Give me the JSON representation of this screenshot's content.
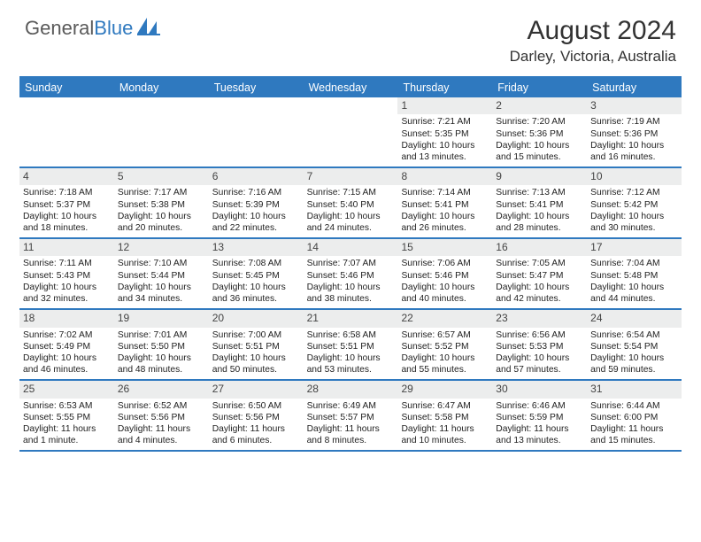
{
  "logo": {
    "part1": "General",
    "part2": "Blue"
  },
  "title": "August 2024",
  "location": "Darley, Victoria, Australia",
  "colors": {
    "brand_blue": "#2f79bf",
    "day_header_bg": "#eceded",
    "text": "#222222",
    "background": "#ffffff"
  },
  "typography": {
    "title_fontsize": 30,
    "location_fontsize": 17,
    "header_row_fontsize": 12.5,
    "cell_fontsize": 10.3
  },
  "day_headers": [
    "Sunday",
    "Monday",
    "Tuesday",
    "Wednesday",
    "Thursday",
    "Friday",
    "Saturday"
  ],
  "weeks": [
    [
      {
        "n": "",
        "sr": "",
        "ss": "",
        "dl": ""
      },
      {
        "n": "",
        "sr": "",
        "ss": "",
        "dl": ""
      },
      {
        "n": "",
        "sr": "",
        "ss": "",
        "dl": ""
      },
      {
        "n": "",
        "sr": "",
        "ss": "",
        "dl": ""
      },
      {
        "n": "1",
        "sr": "Sunrise: 7:21 AM",
        "ss": "Sunset: 5:35 PM",
        "dl": "Daylight: 10 hours and 13 minutes."
      },
      {
        "n": "2",
        "sr": "Sunrise: 7:20 AM",
        "ss": "Sunset: 5:36 PM",
        "dl": "Daylight: 10 hours and 15 minutes."
      },
      {
        "n": "3",
        "sr": "Sunrise: 7:19 AM",
        "ss": "Sunset: 5:36 PM",
        "dl": "Daylight: 10 hours and 16 minutes."
      }
    ],
    [
      {
        "n": "4",
        "sr": "Sunrise: 7:18 AM",
        "ss": "Sunset: 5:37 PM",
        "dl": "Daylight: 10 hours and 18 minutes."
      },
      {
        "n": "5",
        "sr": "Sunrise: 7:17 AM",
        "ss": "Sunset: 5:38 PM",
        "dl": "Daylight: 10 hours and 20 minutes."
      },
      {
        "n": "6",
        "sr": "Sunrise: 7:16 AM",
        "ss": "Sunset: 5:39 PM",
        "dl": "Daylight: 10 hours and 22 minutes."
      },
      {
        "n": "7",
        "sr": "Sunrise: 7:15 AM",
        "ss": "Sunset: 5:40 PM",
        "dl": "Daylight: 10 hours and 24 minutes."
      },
      {
        "n": "8",
        "sr": "Sunrise: 7:14 AM",
        "ss": "Sunset: 5:41 PM",
        "dl": "Daylight: 10 hours and 26 minutes."
      },
      {
        "n": "9",
        "sr": "Sunrise: 7:13 AM",
        "ss": "Sunset: 5:41 PM",
        "dl": "Daylight: 10 hours and 28 minutes."
      },
      {
        "n": "10",
        "sr": "Sunrise: 7:12 AM",
        "ss": "Sunset: 5:42 PM",
        "dl": "Daylight: 10 hours and 30 minutes."
      }
    ],
    [
      {
        "n": "11",
        "sr": "Sunrise: 7:11 AM",
        "ss": "Sunset: 5:43 PM",
        "dl": "Daylight: 10 hours and 32 minutes."
      },
      {
        "n": "12",
        "sr": "Sunrise: 7:10 AM",
        "ss": "Sunset: 5:44 PM",
        "dl": "Daylight: 10 hours and 34 minutes."
      },
      {
        "n": "13",
        "sr": "Sunrise: 7:08 AM",
        "ss": "Sunset: 5:45 PM",
        "dl": "Daylight: 10 hours and 36 minutes."
      },
      {
        "n": "14",
        "sr": "Sunrise: 7:07 AM",
        "ss": "Sunset: 5:46 PM",
        "dl": "Daylight: 10 hours and 38 minutes."
      },
      {
        "n": "15",
        "sr": "Sunrise: 7:06 AM",
        "ss": "Sunset: 5:46 PM",
        "dl": "Daylight: 10 hours and 40 minutes."
      },
      {
        "n": "16",
        "sr": "Sunrise: 7:05 AM",
        "ss": "Sunset: 5:47 PM",
        "dl": "Daylight: 10 hours and 42 minutes."
      },
      {
        "n": "17",
        "sr": "Sunrise: 7:04 AM",
        "ss": "Sunset: 5:48 PM",
        "dl": "Daylight: 10 hours and 44 minutes."
      }
    ],
    [
      {
        "n": "18",
        "sr": "Sunrise: 7:02 AM",
        "ss": "Sunset: 5:49 PM",
        "dl": "Daylight: 10 hours and 46 minutes."
      },
      {
        "n": "19",
        "sr": "Sunrise: 7:01 AM",
        "ss": "Sunset: 5:50 PM",
        "dl": "Daylight: 10 hours and 48 minutes."
      },
      {
        "n": "20",
        "sr": "Sunrise: 7:00 AM",
        "ss": "Sunset: 5:51 PM",
        "dl": "Daylight: 10 hours and 50 minutes."
      },
      {
        "n": "21",
        "sr": "Sunrise: 6:58 AM",
        "ss": "Sunset: 5:51 PM",
        "dl": "Daylight: 10 hours and 53 minutes."
      },
      {
        "n": "22",
        "sr": "Sunrise: 6:57 AM",
        "ss": "Sunset: 5:52 PM",
        "dl": "Daylight: 10 hours and 55 minutes."
      },
      {
        "n": "23",
        "sr": "Sunrise: 6:56 AM",
        "ss": "Sunset: 5:53 PM",
        "dl": "Daylight: 10 hours and 57 minutes."
      },
      {
        "n": "24",
        "sr": "Sunrise: 6:54 AM",
        "ss": "Sunset: 5:54 PM",
        "dl": "Daylight: 10 hours and 59 minutes."
      }
    ],
    [
      {
        "n": "25",
        "sr": "Sunrise: 6:53 AM",
        "ss": "Sunset: 5:55 PM",
        "dl": "Daylight: 11 hours and 1 minute."
      },
      {
        "n": "26",
        "sr": "Sunrise: 6:52 AM",
        "ss": "Sunset: 5:56 PM",
        "dl": "Daylight: 11 hours and 4 minutes."
      },
      {
        "n": "27",
        "sr": "Sunrise: 6:50 AM",
        "ss": "Sunset: 5:56 PM",
        "dl": "Daylight: 11 hours and 6 minutes."
      },
      {
        "n": "28",
        "sr": "Sunrise: 6:49 AM",
        "ss": "Sunset: 5:57 PM",
        "dl": "Daylight: 11 hours and 8 minutes."
      },
      {
        "n": "29",
        "sr": "Sunrise: 6:47 AM",
        "ss": "Sunset: 5:58 PM",
        "dl": "Daylight: 11 hours and 10 minutes."
      },
      {
        "n": "30",
        "sr": "Sunrise: 6:46 AM",
        "ss": "Sunset: 5:59 PM",
        "dl": "Daylight: 11 hours and 13 minutes."
      },
      {
        "n": "31",
        "sr": "Sunrise: 6:44 AM",
        "ss": "Sunset: 6:00 PM",
        "dl": "Daylight: 11 hours and 15 minutes."
      }
    ]
  ]
}
